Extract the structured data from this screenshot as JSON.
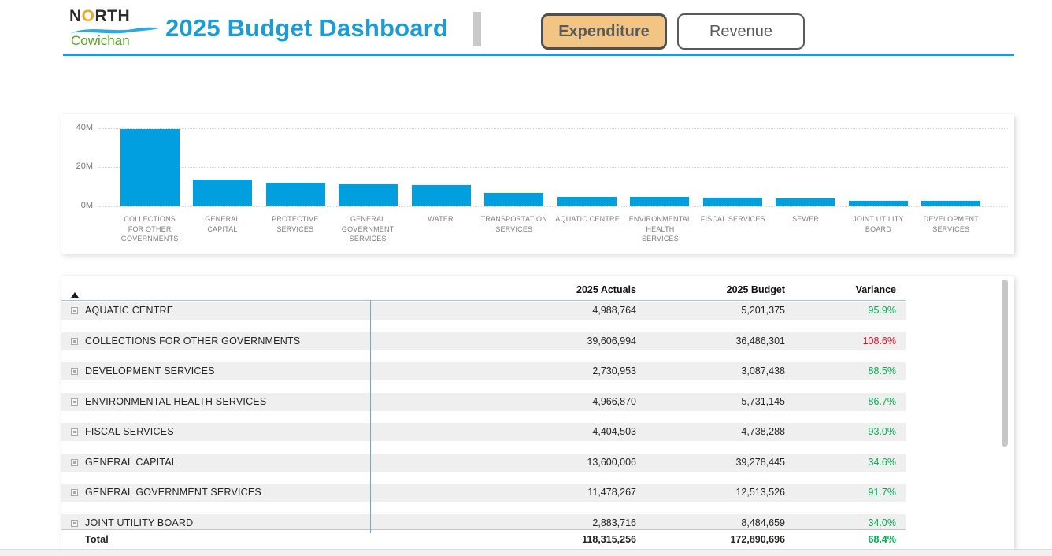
{
  "header": {
    "logo": {
      "top_n": "N",
      "top_o": "O",
      "top_rest": "RTH",
      "bottom": "Cowichan"
    },
    "title": "2025 Budget Dashboard",
    "buttons": [
      {
        "label": "Expenditure",
        "active": true
      },
      {
        "label": "Revenue",
        "active": false
      }
    ],
    "accent_color": "#1a9cd8",
    "active_button_bg": "#f2c584"
  },
  "chart_data": {
    "type": "bar",
    "title": "",
    "xlabel": "",
    "ylabel": "",
    "unit": "millions",
    "ylim": [
      0,
      40
    ],
    "y_ticks": [
      "40M",
      "20M",
      "0M"
    ],
    "grid": "dotted horizontal",
    "legend": "none",
    "bar_color": "#019fdf",
    "categories": [
      "COLLECTIONS FOR OTHER GOVERNMENTS",
      "GENERAL CAPITAL",
      "PROTECTIVE SERVICES",
      "GENERAL GOVERNMENT SERVICES",
      "WATER",
      "TRANSPORTATION SERVICES",
      "AQUATIC CENTRE",
      "ENVIRONMENTAL HEALTH SERVICES",
      "FISCAL SERVICES",
      "SEWER",
      "JOINT UTILITY BOARD",
      "DEVELOPMENT SERVICES"
    ],
    "values": [
      39.6,
      13.6,
      12.0,
      11.5,
      11.0,
      6.8,
      5.0,
      5.0,
      4.4,
      4.2,
      2.9,
      2.7
    ]
  },
  "table": {
    "columns": {
      "actuals": "2025 Actuals",
      "budget": "2025 Budget",
      "variance": "Variance"
    },
    "sort": "ascending",
    "variance_colors": {
      "under": "#00b050",
      "over": "#e81123"
    },
    "rows": [
      {
        "name": "AQUATIC CENTRE",
        "actuals": "4,988,764",
        "budget": "5,201,375",
        "variance": "95.9%",
        "status": "under"
      },
      {
        "name": "COLLECTIONS FOR OTHER GOVERNMENTS",
        "actuals": "39,606,994",
        "budget": "36,486,301",
        "variance": "108.6%",
        "status": "over"
      },
      {
        "name": "DEVELOPMENT SERVICES",
        "actuals": "2,730,953",
        "budget": "3,087,438",
        "variance": "88.5%",
        "status": "under"
      },
      {
        "name": "ENVIRONMENTAL HEALTH SERVICES",
        "actuals": "4,966,870",
        "budget": "5,731,145",
        "variance": "86.7%",
        "status": "under"
      },
      {
        "name": "FISCAL SERVICES",
        "actuals": "4,404,503",
        "budget": "4,738,288",
        "variance": "93.0%",
        "status": "under"
      },
      {
        "name": "GENERAL CAPITAL",
        "actuals": "13,600,006",
        "budget": "39,278,445",
        "variance": "34.6%",
        "status": "under"
      },
      {
        "name": "GENERAL GOVERNMENT SERVICES",
        "actuals": "11,478,267",
        "budget": "12,513,526",
        "variance": "91.7%",
        "status": "under"
      },
      {
        "name": "JOINT UTILITY BOARD",
        "actuals": "2,883,716",
        "budget": "8,484,659",
        "variance": "34.0%",
        "status": "under"
      }
    ],
    "total": {
      "name": "Total",
      "actuals": "118,315,256",
      "budget": "172,890,696",
      "variance": "68.4%",
      "status": "under"
    }
  }
}
